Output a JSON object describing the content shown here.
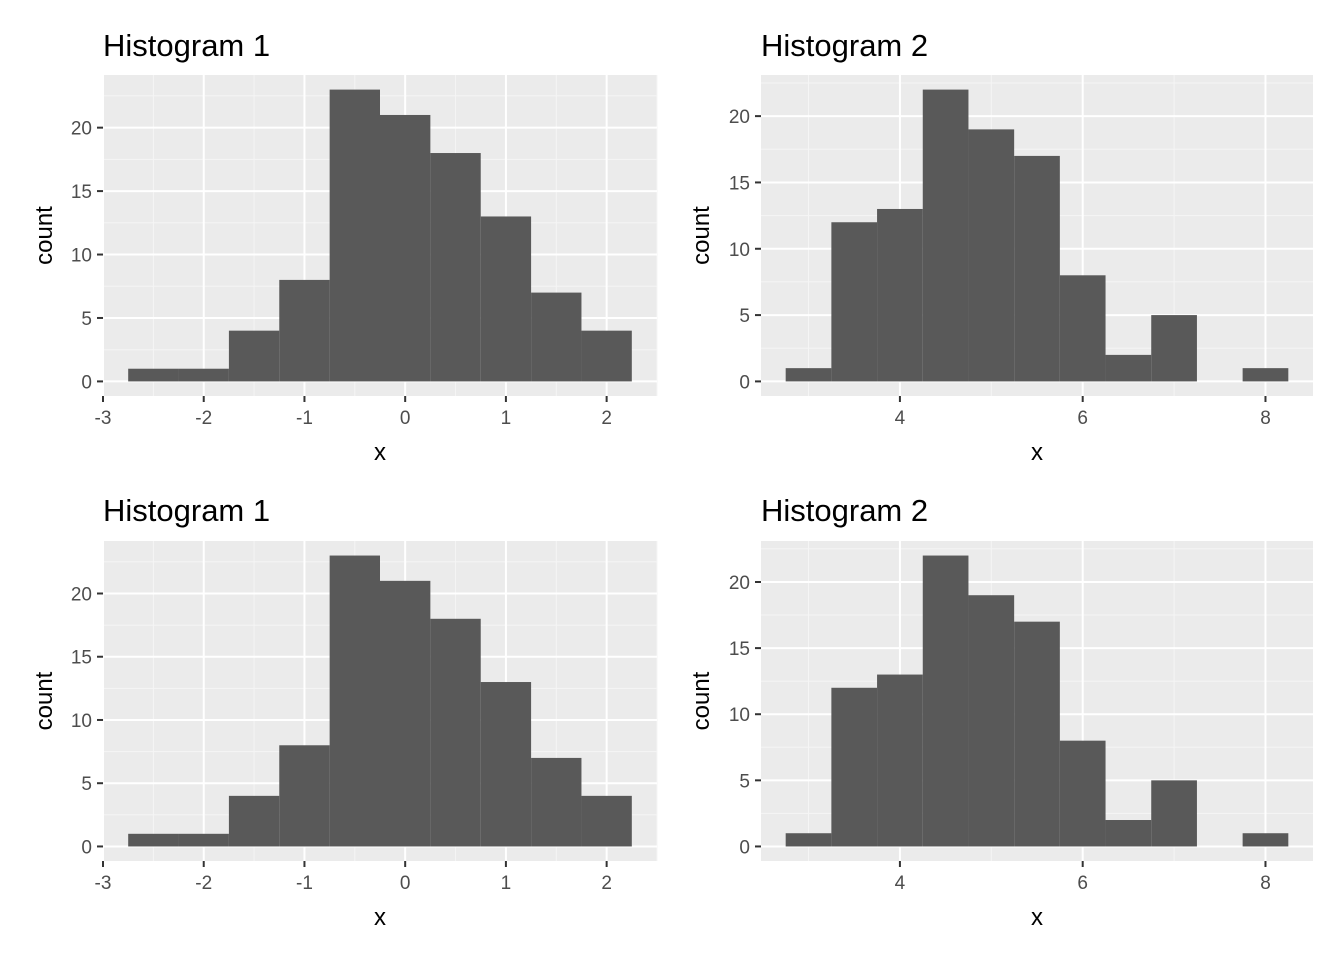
{
  "chart_data": [
    {
      "type": "bar",
      "title": "Histogram 1",
      "xlabel": "x",
      "ylabel": "count",
      "bins": [
        {
          "x0": -2.75,
          "x1": -2.25,
          "count": 1
        },
        {
          "x0": -2.25,
          "x1": -1.75,
          "count": 1
        },
        {
          "x0": -1.75,
          "x1": -1.25,
          "count": 4
        },
        {
          "x0": -1.25,
          "x1": -0.75,
          "count": 8
        },
        {
          "x0": -0.75,
          "x1": -0.25,
          "count": 23
        },
        {
          "x0": -0.25,
          "x1": 0.25,
          "count": 21
        },
        {
          "x0": 0.25,
          "x1": 0.75,
          "count": 18
        },
        {
          "x0": 0.75,
          "x1": 1.25,
          "count": 13
        },
        {
          "x0": 1.25,
          "x1": 1.75,
          "count": 7
        },
        {
          "x0": 1.75,
          "x1": 2.25,
          "count": 4
        }
      ],
      "xlim": [
        -3,
        2.5
      ],
      "ylim": [
        -1.15,
        24.15
      ],
      "xticks": [
        -3,
        -2,
        -1,
        0,
        1,
        2
      ],
      "xtick_labels": [
        "-3",
        "-2",
        "-1",
        "0",
        "1",
        "2"
      ],
      "yticks": [
        0,
        5,
        10,
        15,
        20
      ],
      "ytick_labels": [
        "0",
        "5",
        "10",
        "15",
        "20"
      ],
      "grid": true
    },
    {
      "type": "bar",
      "title": "Histogram 2",
      "xlabel": "x",
      "ylabel": "count",
      "bins": [
        {
          "x0": 2.75,
          "x1": 3.25,
          "count": 1
        },
        {
          "x0": 3.25,
          "x1": 3.75,
          "count": 12
        },
        {
          "x0": 3.75,
          "x1": 4.25,
          "count": 13
        },
        {
          "x0": 4.25,
          "x1": 4.75,
          "count": 22
        },
        {
          "x0": 4.75,
          "x1": 5.25,
          "count": 19
        },
        {
          "x0": 5.25,
          "x1": 5.75,
          "count": 17
        },
        {
          "x0": 5.75,
          "x1": 6.25,
          "count": 8
        },
        {
          "x0": 6.25,
          "x1": 6.75,
          "count": 2
        },
        {
          "x0": 6.75,
          "x1": 7.25,
          "count": 5
        },
        {
          "x0": 7.25,
          "x1": 7.75,
          "count": 0
        },
        {
          "x0": 7.75,
          "x1": 8.25,
          "count": 1
        }
      ],
      "xlim": [
        2.48,
        8.52
      ],
      "ylim": [
        -1.1,
        23.1
      ],
      "xticks": [
        4,
        6,
        8
      ],
      "xtick_labels": [
        "4",
        "6",
        "8"
      ],
      "yticks": [
        0,
        5,
        10,
        15,
        20
      ],
      "ytick_labels": [
        "0",
        "5",
        "10",
        "15",
        "20"
      ],
      "grid": true
    },
    {
      "type": "bar",
      "title": "Histogram 1",
      "xlabel": "x",
      "ylabel": "count",
      "bins": [
        {
          "x0": -2.75,
          "x1": -2.25,
          "count": 1
        },
        {
          "x0": -2.25,
          "x1": -1.75,
          "count": 1
        },
        {
          "x0": -1.75,
          "x1": -1.25,
          "count": 4
        },
        {
          "x0": -1.25,
          "x1": -0.75,
          "count": 8
        },
        {
          "x0": -0.75,
          "x1": -0.25,
          "count": 23
        },
        {
          "x0": -0.25,
          "x1": 0.25,
          "count": 21
        },
        {
          "x0": 0.25,
          "x1": 0.75,
          "count": 18
        },
        {
          "x0": 0.75,
          "x1": 1.25,
          "count": 13
        },
        {
          "x0": 1.25,
          "x1": 1.75,
          "count": 7
        },
        {
          "x0": 1.75,
          "x1": 2.25,
          "count": 4
        }
      ],
      "xlim": [
        -3,
        2.5
      ],
      "ylim": [
        -1.15,
        24.15
      ],
      "xticks": [
        -3,
        -2,
        -1,
        0,
        1,
        2
      ],
      "xtick_labels": [
        "-3",
        "-2",
        "-1",
        "0",
        "1",
        "2"
      ],
      "yticks": [
        0,
        5,
        10,
        15,
        20
      ],
      "ytick_labels": [
        "0",
        "5",
        "10",
        "15",
        "20"
      ],
      "grid": true
    },
    {
      "type": "bar",
      "title": "Histogram 2",
      "xlabel": "x",
      "ylabel": "count",
      "bins": [
        {
          "x0": 2.75,
          "x1": 3.25,
          "count": 1
        },
        {
          "x0": 3.25,
          "x1": 3.75,
          "count": 12
        },
        {
          "x0": 3.75,
          "x1": 4.25,
          "count": 13
        },
        {
          "x0": 4.25,
          "x1": 4.75,
          "count": 22
        },
        {
          "x0": 4.75,
          "x1": 5.25,
          "count": 19
        },
        {
          "x0": 5.25,
          "x1": 5.75,
          "count": 17
        },
        {
          "x0": 5.75,
          "x1": 6.25,
          "count": 8
        },
        {
          "x0": 6.25,
          "x1": 6.75,
          "count": 2
        },
        {
          "x0": 6.75,
          "x1": 7.25,
          "count": 5
        },
        {
          "x0": 7.25,
          "x1": 7.75,
          "count": 0
        },
        {
          "x0": 7.75,
          "x1": 8.25,
          "count": 1
        }
      ],
      "xlim": [
        2.48,
        8.52
      ],
      "ylim": [
        -1.1,
        23.1
      ],
      "xticks": [
        4,
        6,
        8
      ],
      "xtick_labels": [
        "4",
        "6",
        "8"
      ],
      "yticks": [
        0,
        5,
        10,
        15,
        20
      ],
      "ytick_labels": [
        "0",
        "5",
        "10",
        "15",
        "20"
      ],
      "grid": true
    }
  ],
  "colors": {
    "panel_background": "#ebebeb",
    "grid_major": "#ffffff",
    "grid_minor": "#f5f5f5",
    "bar_fill": "#595959",
    "tick_mark": "#333333",
    "tick_label": "#4d4d4d",
    "text": "#000000"
  }
}
